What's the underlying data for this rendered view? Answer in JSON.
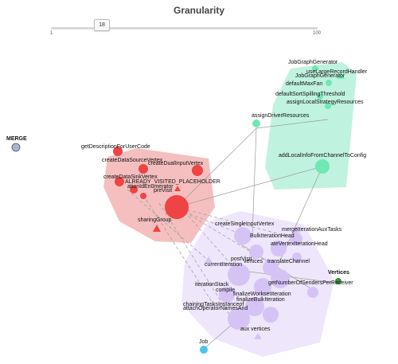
{
  "header": {
    "title": "Granularity"
  },
  "slider": {
    "value": "18",
    "min_label": "1",
    "max_label": "100"
  },
  "colors": {
    "red": "#ee4444",
    "red_region": "#f2aaaa",
    "green": "#6fe8b3",
    "green_region": "#b8f1dc",
    "purple": "#d6c3f6",
    "purple_region": "#ece3fb",
    "merge": "#a6b4d8",
    "job": "#4fc3f0",
    "vertices": "#3d8e3d"
  },
  "graph": {
    "merge_label": "MERGE",
    "job_label": "Job",
    "vertices_label": "Vertices",
    "red_labels": {
      "descriptor": "getDescriptionForUserCode",
      "datasource": "createDataSourceVertex",
      "dual": "createDualInputVertex",
      "datasink": "createDataSinkVertex",
      "visited": "ALREADY_VISITED_PLACEHOLDER",
      "enumerator": "ationIdEnumerator",
      "preVisit": "preVisit",
      "sharing": "sharingGroup"
    },
    "green_labels": {
      "generator1": "JobGraphGenerator",
      "large": "useLargeRecordHandler",
      "generator2": "JobGraphGenerator",
      "maxfan": "defaultMaxFan",
      "spilling": "defaultSortSpillingThreshold",
      "assignlocal": "assignLocalStrategyResources",
      "assigndriver": "assignDriverResources",
      "addlocal": "addLocalInfoFromChannelToConfig"
    },
    "purple_labels": {
      "single": "createSingleInputVertex",
      "merge_iter": "mergeIterationAuxTasks",
      "bulkhead": "BulkIterationHead",
      "vertexhead": "ateVertexIterationHead",
      "postvisit": "postVisit",
      "currentiter": "currentIteration",
      "vertices_txt": "vertices",
      "translate": "translateChannel",
      "numsenders": "getNumberOfSendersPerReceiver",
      "iterstack": "iterationStack",
      "compile": "compile",
      "finalize_ws": "finalizeWorksetIteration",
      "finalize_bulk": "finalizeBulkIteration",
      "chaining": "chainingTasksInstanceof",
      "attach": "attachOperatorNamesAnd",
      "aux": "aux vertices"
    }
  }
}
